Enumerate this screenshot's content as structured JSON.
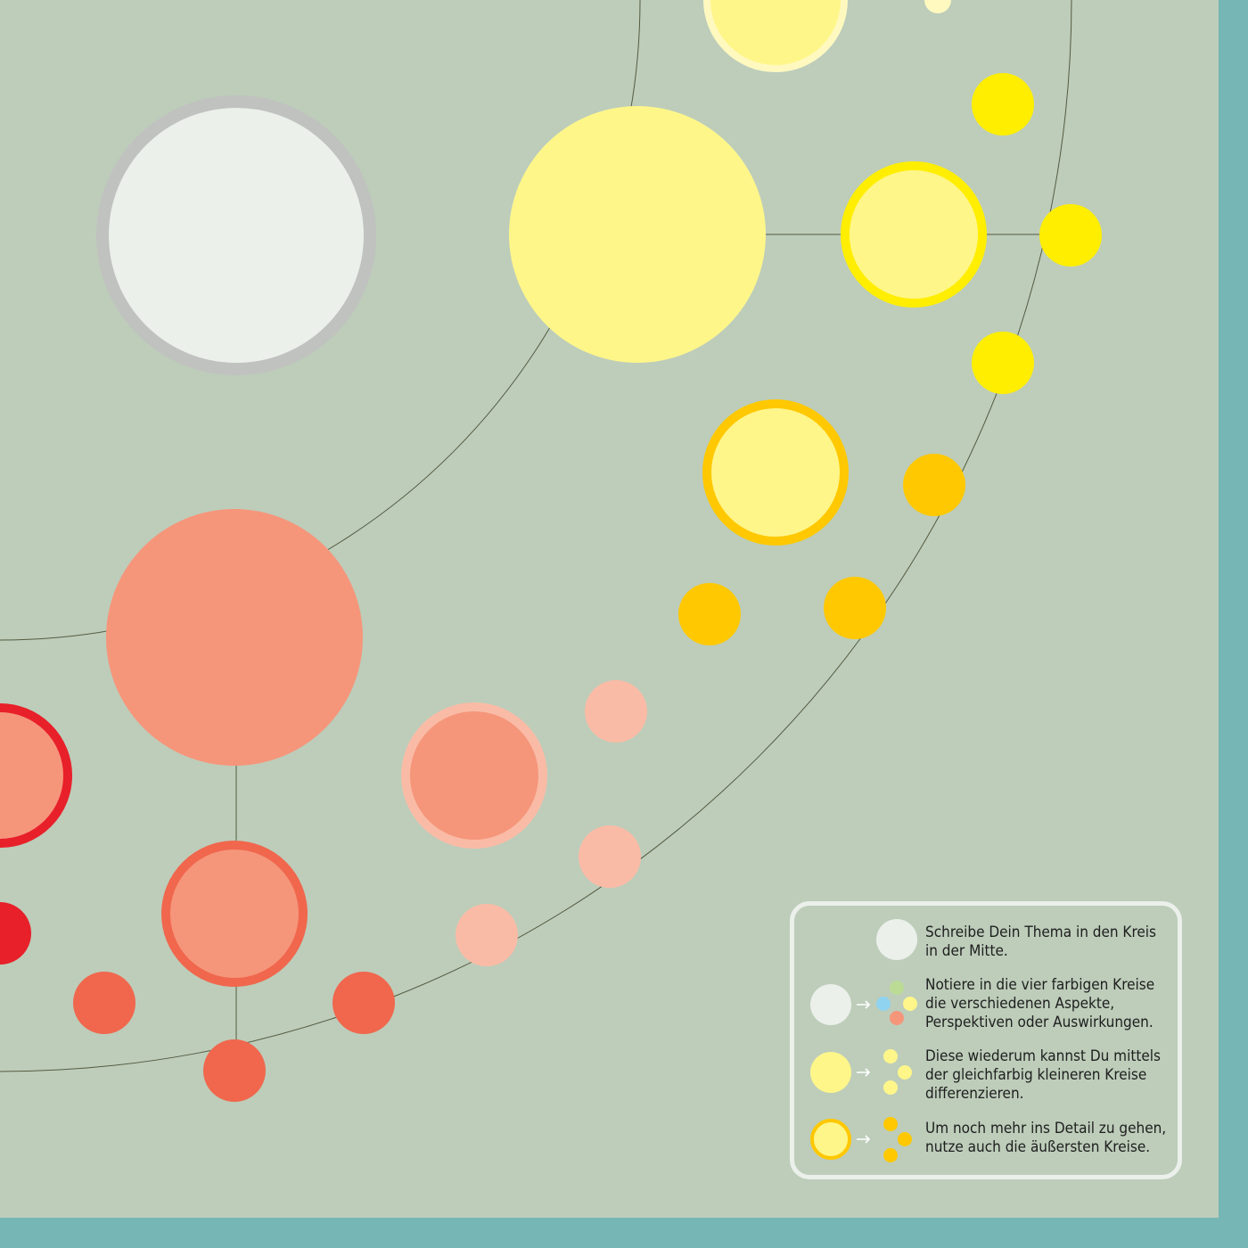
{
  "colors": {
    "background": "#bdcdba",
    "frame": "#76b6b5",
    "connector": "#555a40",
    "center_fill": "#ebf0eb",
    "center_ring": "#c0c2bf",
    "yellow_light": "#fff68a",
    "yellow_strong": "#ffee00",
    "yellow_pale_ring": "#fff9c0",
    "amber": "#ffc800",
    "salmon": "#f5967b",
    "salmon_light": "#fabba6",
    "coral": "#f0674d",
    "red": "#e8202a",
    "legend_border": "#ebf0eb",
    "legend_green": "#bcdc96",
    "legend_blue": "#8fd3f0",
    "arrow": "#ffffff"
  },
  "legend": {
    "items": [
      {
        "icon": "center-circle-icon",
        "lines": [
          "Schreibe Dein Thema in den Kreis",
          "in der Mitte."
        ]
      },
      {
        "icon": "aspects-icon",
        "lines": [
          "Notiere in die vier farbigen Kreise",
          "die verschiedenen Aspekte,",
          "Perspektiven oder Auswirkungen."
        ]
      },
      {
        "icon": "differentiate-icon",
        "lines": [
          "Diese wiederum kannst Du mittels",
          "der gleichfarbig kleineren Kreise",
          "differenzieren."
        ]
      },
      {
        "icon": "detail-icon",
        "lines": [
          "Um noch mehr ins Detail zu gehen,",
          "nutze auch die äußersten Kreise."
        ]
      }
    ]
  }
}
